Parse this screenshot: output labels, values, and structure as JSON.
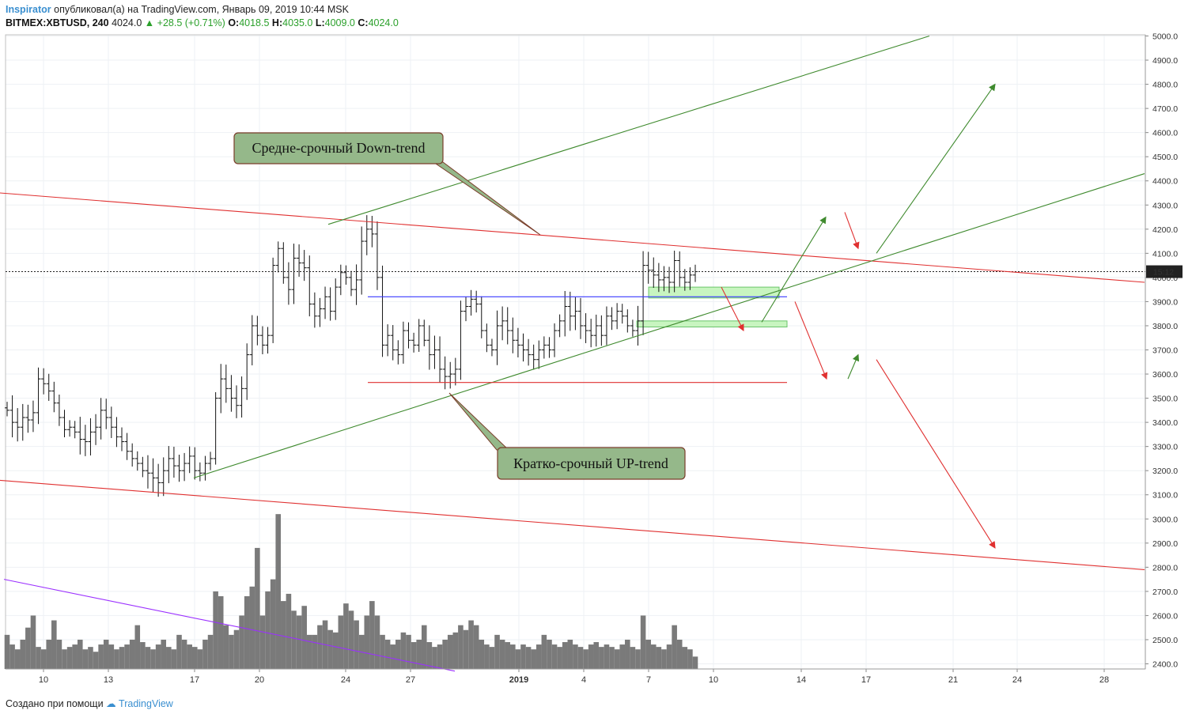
{
  "header": {
    "author": "Inspirator",
    "published": "опубликовал(а) на TradingView.com, Январь 09, 2019 10:44 MSK",
    "symbol": "BITMEX:XBTUSD, 240",
    "last": "4024.0",
    "change": "+28.5 (+0.71%)",
    "open_label": "O:",
    "open": "4018.5",
    "high_label": "H:",
    "high": "4035.0",
    "low_label": "L:",
    "low": "4009.0",
    "close_label": "C:",
    "close": "4024.0"
  },
  "footer": {
    "created_with": "Создано при помощи",
    "brand": "TradingView"
  },
  "colors": {
    "red_line": "#e03030",
    "green_line": "#3f8a2e",
    "blue_line": "#3a3aff",
    "purple_line": "#9b30ff",
    "callout_fill": "#95b88a",
    "callout_border": "#7a3d2a",
    "zone_fill": "#c8f5c0",
    "volume": "#7a7a7a",
    "candle": "#111111",
    "price_label_bg": "#222222"
  },
  "chart_data": {
    "type": "candlestick",
    "title": "",
    "xlabel": "",
    "ylabel": "",
    "ylim": [
      2380,
      5010
    ],
    "y_ticks": [
      "5000.0",
      "4900.0",
      "4800.0",
      "4700.0",
      "4600.0",
      "4500.0",
      "4400.0",
      "4300.0",
      "4200.0",
      "4100.0",
      "4000.0",
      "3900.0",
      "3800.0",
      "3700.0",
      "3600.0",
      "3500.0",
      "3400.0",
      "3300.0",
      "3200.0",
      "3100.0",
      "3000.0",
      "2900.0",
      "2800.0",
      "2700.0",
      "2600.0",
      "2500.0",
      "2400.0"
    ],
    "x_ticks": [
      "10",
      "13",
      "17",
      "20",
      "24",
      "27",
      "2019",
      "4",
      "7",
      "10",
      "14",
      "17",
      "21",
      "24",
      "28"
    ],
    "current_price_label": "15:12",
    "current_price": 4024,
    "annotations": [
      {
        "text": "Средне-срочный Down-trend",
        "target": "red-upper-trendline"
      },
      {
        "text": "Кратко-срочный UP-trend",
        "target": "green-lower-trendline"
      }
    ],
    "price_path": [
      3450,
      3400,
      3380,
      3420,
      3410,
      3440,
      3580,
      3560,
      3530,
      3480,
      3420,
      3370,
      3380,
      3360,
      3330,
      3320,
      3360,
      3380,
      3450,
      3420,
      3380,
      3340,
      3320,
      3280,
      3250,
      3230,
      3200,
      3190,
      3170,
      3150,
      3200,
      3250,
      3220,
      3200,
      3230,
      3260,
      3200,
      3190,
      3230,
      3250,
      3500,
      3580,
      3540,
      3500,
      3470,
      3540,
      3680,
      3800,
      3760,
      3720,
      3760,
      4050,
      4120,
      4000,
      3950,
      4080,
      4060,
      4040,
      3890,
      3840,
      3870,
      3920,
      3860,
      3960,
      4020,
      4000,
      3950,
      3990,
      4150,
      4200,
      4180,
      4000,
      3720,
      3760,
      3700,
      3680,
      3780,
      3740,
      3720,
      3800,
      3740,
      3680,
      3700,
      3620,
      3590,
      3600,
      3620,
      3860,
      3880,
      3910,
      3890,
      3780,
      3720,
      3700,
      3800,
      3820,
      3780,
      3740,
      3720,
      3700,
      3680,
      3660,
      3700,
      3720,
      3700,
      3780,
      3820,
      3880,
      3840,
      3860,
      3800,
      3780,
      3760,
      3800,
      3760,
      3840,
      3820,
      3860,
      3840,
      3800,
      3780,
      3820,
      4050,
      4030,
      4010,
      3990,
      4000,
      3980,
      4070,
      4000,
      3980,
      4010,
      4024
    ],
    "volume_path": [
      2520,
      2480,
      2460,
      2500,
      2550,
      2600,
      2470,
      2460,
      2500,
      2580,
      2500,
      2460,
      2470,
      2480,
      2500,
      2460,
      2470,
      2450,
      2480,
      2500,
      2480,
      2460,
      2470,
      2480,
      2500,
      2560,
      2490,
      2470,
      2460,
      2480,
      2500,
      2470,
      2460,
      2520,
      2500,
      2480,
      2470,
      2460,
      2500,
      2520,
      2700,
      2680,
      2560,
      2520,
      2540,
      2600,
      2680,
      2720,
      2880,
      2600,
      2700,
      2750,
      3020,
      2660,
      2690,
      2620,
      2600,
      2640,
      2520,
      2520,
      2560,
      2580,
      2540,
      2530,
      2600,
      2650,
      2620,
      2580,
      2520,
      2600,
      2660,
      2600,
      2520,
      2500,
      2480,
      2500,
      2530,
      2520,
      2490,
      2500,
      2560,
      2490,
      2470,
      2480,
      2500,
      2520,
      2530,
      2560,
      2540,
      2580,
      2560,
      2500,
      2480,
      2470,
      2520,
      2500,
      2490,
      2480,
      2460,
      2480,
      2470,
      2460,
      2480,
      2520,
      2500,
      2480,
      2470,
      2490,
      2500,
      2480,
      2470,
      2460,
      2480,
      2490,
      2470,
      2480,
      2470,
      2460,
      2480,
      2500,
      2470,
      2460,
      2600,
      2500,
      2480,
      2470,
      2460,
      2480,
      2560,
      2500,
      2470,
      2460,
      2430
    ],
    "drawn_lines": [
      {
        "name": "red-upper-trendline",
        "color": "red",
        "points": [
          [
            0,
            4350
          ],
          [
            1447,
            3980
          ]
        ]
      },
      {
        "name": "red-lower-trendline",
        "color": "red",
        "points": [
          [
            0,
            3160
          ],
          [
            1447,
            2790
          ]
        ]
      },
      {
        "name": "green-upper-channel",
        "color": "green",
        "points": [
          [
            415,
            4220
          ],
          [
            1175,
            5000
          ]
        ]
      },
      {
        "name": "green-lower-trendline",
        "color": "green",
        "points": [
          [
            245,
            3170
          ],
          [
            1447,
            4430
          ]
        ]
      },
      {
        "name": "blue-resistance",
        "color": "blue",
        "points": [
          [
            465,
            3920
          ],
          [
            815,
            3920
          ]
        ]
      },
      {
        "name": "red-support",
        "color": "red",
        "points": [
          [
            465,
            3565
          ],
          [
            995,
            3565
          ]
        ]
      },
      {
        "name": "blue-short-resistance",
        "color": "blue",
        "points": [
          [
            815,
            3920
          ],
          [
            995,
            3920
          ]
        ]
      },
      {
        "name": "purple-volume-trend",
        "color": "purple",
        "points": [
          [
            5,
            2750
          ],
          [
            575,
            2370
          ]
        ]
      }
    ]
  }
}
